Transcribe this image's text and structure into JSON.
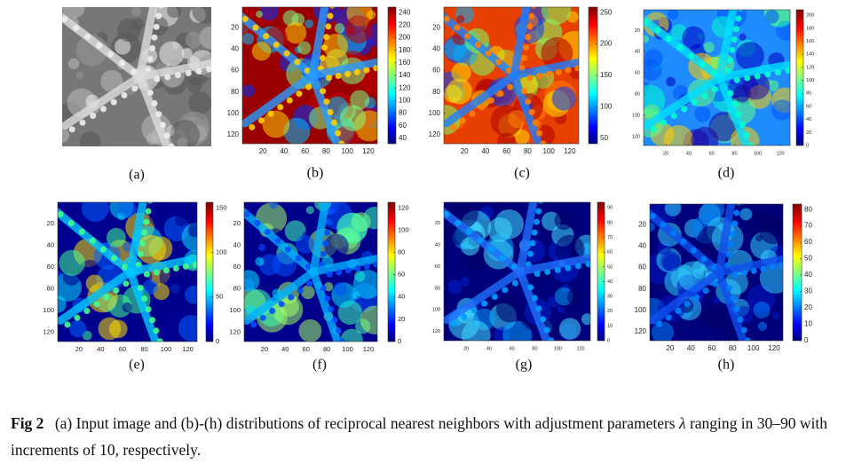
{
  "panels": [
    {
      "label": "(a)"
    },
    {
      "label": "(b)",
      "xticks": [
        20,
        40,
        60,
        80,
        100,
        120
      ],
      "yticks": [
        20,
        40,
        60,
        80,
        100,
        120
      ],
      "colorbar_ticks": [
        40,
        60,
        80,
        100,
        120,
        140,
        160,
        180,
        200,
        220,
        240
      ]
    },
    {
      "label": "(c)",
      "xticks": [
        20,
        40,
        60,
        80,
        100,
        120
      ],
      "yticks": [
        20,
        40,
        60,
        80,
        100,
        120
      ],
      "colorbar_ticks": [
        50,
        100,
        150,
        200,
        250
      ]
    },
    {
      "label": "(d)",
      "xticks": [
        20,
        40,
        60,
        80,
        100,
        120
      ],
      "yticks": [
        20,
        40,
        60,
        80,
        100,
        120
      ],
      "colorbar_ticks": [
        0,
        20,
        40,
        60,
        80,
        100,
        120,
        140,
        160,
        180,
        200
      ]
    },
    {
      "label": "(e)",
      "xticks": [
        20,
        40,
        60,
        80,
        100,
        120
      ],
      "yticks": [
        20,
        40,
        60,
        80,
        100,
        120
      ],
      "colorbar_ticks": [
        0,
        50,
        100,
        150
      ]
    },
    {
      "label": "(f)",
      "xticks": [
        20,
        40,
        60,
        80,
        100,
        120
      ],
      "yticks": [
        20,
        40,
        60,
        80,
        100,
        120
      ],
      "colorbar_ticks": [
        0,
        20,
        40,
        60,
        80,
        100,
        120
      ]
    },
    {
      "label": "(g)",
      "xticks": [
        20,
        40,
        60,
        80,
        100,
        120
      ],
      "yticks": [
        20,
        40,
        60,
        80,
        100,
        120
      ],
      "colorbar_ticks": [
        0,
        10,
        20,
        30,
        40,
        50,
        60,
        70,
        80,
        90
      ]
    },
    {
      "label": "(h)",
      "xticks": [
        20,
        40,
        60,
        80,
        100,
        120
      ],
      "yticks": [
        20,
        40,
        60,
        80,
        100,
        120
      ],
      "colorbar_ticks": [
        0,
        10,
        20,
        30,
        40,
        50,
        60,
        70,
        80
      ]
    }
  ],
  "caption": {
    "figure": "Fig 2",
    "text_before": "(a) Input image and (b)-(h) distributions of reciprocal nearest neighbors with adjustment parameters",
    "symbol": "λ",
    "text_after": "ranging in 30–90 with increments of 10, respectively."
  }
}
